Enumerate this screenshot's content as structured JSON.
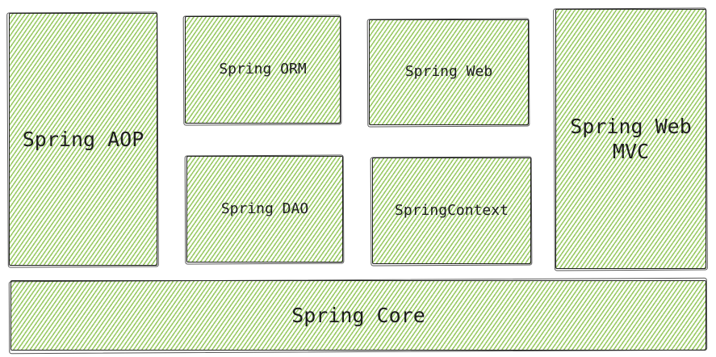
{
  "diagram": {
    "modules": {
      "aop": "Spring AOP",
      "orm": "Spring ORM",
      "web": "Spring Web",
      "web_mvc": "Spring Web\nMVC",
      "dao": "Spring DAO",
      "context": "SpringContext",
      "core": "Spring Core"
    },
    "style": {
      "fill_color": "#96c85f",
      "stroke_color": "#1e1e1e",
      "fill_style": "hachure",
      "background": "#ffffff"
    }
  }
}
